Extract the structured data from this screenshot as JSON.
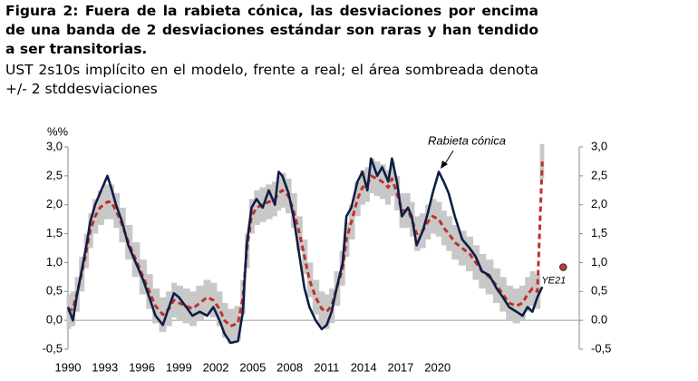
{
  "chart_data": {
    "type": "line",
    "title": "Figura 2: Fuera de la rabieta cónica, las desviaciones por encima de una banda de 2 desviaciones estándar son raras y han tendido a ser transitorias.",
    "subtitle": "UST 2s10s implícito en el modelo, frente a real; el área sombreada denota +/- 2 stddesviaciones",
    "y_label": "%%",
    "annotation": "Rabieta cónica",
    "xlim": [
      1990,
      2031.5
    ],
    "xticks": [
      1990,
      1993,
      1996,
      1999,
      2002,
      2005,
      2008,
      2011,
      2014,
      2017,
      2020
    ],
    "ylim": [
      -0.5,
      3.0
    ],
    "yticks": [
      {
        "value": 3.0,
        "label": "3,0"
      },
      {
        "value": 2.5,
        "label": "2,5"
      },
      {
        "value": 2.0,
        "label": "2,0"
      },
      {
        "value": 1.5,
        "label": "1,5"
      },
      {
        "value": 1.0,
        "label": "1,0"
      },
      {
        "value": 0.5,
        "label": "0,5"
      },
      {
        "value": 0.0,
        "label": "0,0"
      },
      {
        "value": -0.5,
        "label": "-0,5"
      }
    ],
    "y2lim": [
      -0.5,
      3.0
    ],
    "y2ticks": [
      {
        "value": 3.0,
        "label": "3,0"
      },
      {
        "value": 2.5,
        "label": "2,5"
      },
      {
        "value": 2.0,
        "label": "2,0"
      },
      {
        "value": 1.5,
        "label": "1,5"
      },
      {
        "value": 1.0,
        "label": "1,0"
      },
      {
        "value": 0.5,
        "label": "0,5"
      },
      {
        "value": 0.0,
        "label": "0.0"
      },
      {
        "value": -0.5,
        "label": "-0,5"
      }
    ],
    "x": [
      1990.0,
      1990.4,
      1990.7,
      1991.1,
      1991.5,
      1991.8,
      1992.2,
      1992.6,
      1993.2,
      1993.5,
      1993.9,
      1994.4,
      1994.9,
      1995.5,
      1996.1,
      1996.6,
      1997.1,
      1997.7,
      1998.2,
      1998.6,
      1999.0,
      1999.6,
      2000.1,
      2000.7,
      2001.3,
      2001.8,
      2002.3,
      2002.7,
      2003.2,
      2003.8,
      2004.2,
      2004.5,
      2004.9,
      2005.3,
      2005.8,
      2006.3,
      2006.8,
      2007.1,
      2007.4,
      2007.9,
      2008.3,
      2008.8,
      2009.2,
      2009.6,
      2010.1,
      2010.6,
      2011.0,
      2011.4,
      2011.8,
      2012.3,
      2012.6,
      2013.0,
      2013.5,
      2013.9,
      2014.3,
      2014.6,
      2015.1,
      2015.5,
      2016.0,
      2016.3,
      2016.7,
      2017.1,
      2017.6,
      2017.9,
      2018.3,
      2018.8,
      2019.2,
      2019.6,
      2020.1,
      2020.5,
      2020.9,
      2021.4,
      2022.0,
      2022.6,
      2023.1,
      2023.6,
      2024.2,
      2024.8,
      2025.3,
      2025.8,
      2026.4,
      2026.9,
      2027.3,
      2027.7,
      2028.1,
      2028.5
    ],
    "band": {
      "color": "#c8c8c8",
      "lower": [
        -0.15,
        -0.1,
        0.15,
        0.5,
        0.9,
        1.25,
        1.5,
        1.65,
        1.75,
        1.75,
        1.6,
        1.35,
        1.05,
        0.75,
        0.45,
        0.2,
        -0.05,
        -0.2,
        -0.1,
        0.05,
        0,
        -0.05,
        -0.1,
        0,
        0.1,
        0.05,
        -0.1,
        -0.3,
        -0.4,
        -0.35,
        0.1,
        0.9,
        1.5,
        1.65,
        1.7,
        1.75,
        1.8,
        1.9,
        1.95,
        1.85,
        1.6,
        1.2,
        0.8,
        0.4,
        0.1,
        -0.1,
        -0.15,
        -0.05,
        0.25,
        0.6,
        1.1,
        1.4,
        1.8,
        2.0,
        2.05,
        2.2,
        2.15,
        2.1,
        2.0,
        2.15,
        1.9,
        1.6,
        1.6,
        1.45,
        1.2,
        1.25,
        1.4,
        1.5,
        1.45,
        1.3,
        1.2,
        1.05,
        0.95,
        0.85,
        0.7,
        0.55,
        0.45,
        0.3,
        0.15,
        0,
        -0.05,
        0,
        0.15,
        0.25,
        0.2,
        2.45
      ],
      "upper": [
        0.45,
        0.5,
        0.75,
        1.1,
        1.5,
        1.85,
        2.1,
        2.25,
        2.35,
        2.35,
        2.2,
        1.95,
        1.65,
        1.35,
        1.05,
        0.8,
        0.55,
        0.4,
        0.5,
        0.65,
        0.6,
        0.55,
        0.5,
        0.6,
        0.7,
        0.65,
        0.5,
        0.3,
        0.2,
        0.25,
        0.7,
        1.5,
        2.1,
        2.25,
        2.3,
        2.35,
        2.4,
        2.5,
        2.55,
        2.45,
        2.2,
        1.8,
        1.4,
        1.0,
        0.7,
        0.5,
        0.45,
        0.55,
        0.85,
        1.2,
        1.7,
        2.0,
        2.4,
        2.6,
        2.65,
        2.8,
        2.75,
        2.7,
        2.6,
        2.75,
        2.5,
        2.2,
        2.2,
        2.05,
        1.8,
        1.85,
        2.0,
        2.1,
        2.05,
        1.9,
        1.8,
        1.65,
        1.55,
        1.45,
        1.3,
        1.15,
        1.05,
        0.9,
        0.75,
        0.6,
        0.55,
        0.6,
        0.75,
        0.85,
        0.8,
        3.05
      ]
    },
    "series": [
      {
        "color": "#c0302b",
        "style": "dashed",
        "values": [
          0.15,
          0.2,
          0.45,
          0.8,
          1.2,
          1.55,
          1.8,
          1.95,
          2.05,
          2.05,
          1.9,
          1.65,
          1.35,
          1.05,
          0.75,
          0.5,
          0.25,
          0.1,
          0.2,
          0.35,
          0.3,
          0.25,
          0.2,
          0.3,
          0.4,
          0.35,
          0.2,
          0.0,
          -0.1,
          -0.05,
          0.4,
          1.2,
          1.8,
          1.95,
          2.0,
          2.05,
          2.1,
          2.2,
          2.25,
          2.15,
          1.9,
          1.5,
          1.1,
          0.7,
          0.4,
          0.2,
          0.15,
          0.25,
          0.55,
          0.9,
          1.4,
          1.7,
          2.1,
          2.3,
          2.35,
          2.5,
          2.45,
          2.4,
          2.3,
          2.45,
          2.2,
          1.9,
          1.9,
          1.75,
          1.5,
          1.55,
          1.7,
          1.8,
          1.75,
          1.6,
          1.5,
          1.35,
          1.25,
          1.15,
          1.0,
          0.85,
          0.75,
          0.6,
          0.45,
          0.3,
          0.25,
          0.3,
          0.45,
          0.55,
          0.5,
          2.75
        ]
      },
      {
        "color": "#0d1e45",
        "style": "solid",
        "values": [
          0.23,
          0,
          0.4,
          0.85,
          1.3,
          1.7,
          2.0,
          2.2,
          2.5,
          2.3,
          2.0,
          1.7,
          1.3,
          1.0,
          0.7,
          0.4,
          0.08,
          -0.08,
          0.23,
          0.47,
          0.4,
          0.23,
          0.08,
          0.15,
          0.08,
          0.23,
          0,
          -0.23,
          -0.39,
          -0.36,
          0.15,
          1.3,
          1.95,
          2.1,
          1.95,
          2.25,
          2.0,
          2.57,
          2.5,
          2.2,
          1.8,
          1.1,
          0.55,
          0.23,
          0,
          -0.15,
          -0.08,
          0.15,
          0.55,
          1.0,
          1.8,
          1.95,
          2.4,
          2.57,
          2.25,
          2.8,
          2.5,
          2.65,
          2.4,
          2.8,
          2.4,
          1.8,
          1.95,
          1.8,
          1.3,
          1.55,
          1.85,
          2.2,
          2.57,
          2.4,
          2.2,
          1.8,
          1.4,
          1.25,
          1.1,
          0.85,
          0.78,
          0.55,
          0.4,
          0.23,
          0.15,
          0.08,
          0.23,
          0.15,
          0.4,
          0.58
        ]
      }
    ],
    "points": [
      {
        "label": "YE21",
        "x": 2030.2,
        "y": 0.92,
        "color": "#c0392b"
      }
    ]
  }
}
